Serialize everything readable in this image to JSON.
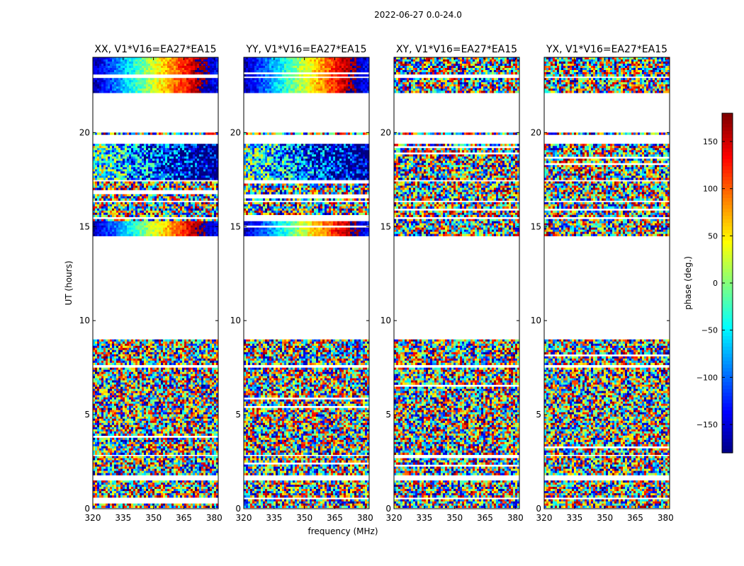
{
  "figure": {
    "suptitle": "2022-06-27 0.0-24.0"
  },
  "chart_data": {
    "type": "heatmap",
    "subtitle": "2022-06-27 0.0-24.0",
    "xlabel": "frequency (MHz)",
    "ylabel": "UT (hours)",
    "xlim": [
      320,
      382
    ],
    "ylim": [
      0,
      24
    ],
    "xticks": [
      320,
      335,
      350,
      365,
      380
    ],
    "yticks": [
      0,
      5,
      10,
      15,
      20
    ],
    "colorbar": {
      "label": "phase (deg.)",
      "range": [
        -180,
        180
      ],
      "ticks": [
        -150,
        -100,
        -50,
        0,
        50,
        100,
        150
      ],
      "colormap": "jet",
      "colors": [
        "#00007f",
        "#0000ff",
        "#007fff",
        "#00ffff",
        "#7fff7f",
        "#ffff00",
        "#ff7f00",
        "#ff0000",
        "#7f0000"
      ]
    },
    "panels": [
      {
        "title": "XX, V1*V16=EA27*EA15",
        "coherent_phase": true
      },
      {
        "title": "YY, V1*V16=EA27*EA15",
        "coherent_phase": true
      },
      {
        "title": "XY, V1*V16=EA27*EA15",
        "coherent_phase": false
      },
      {
        "title": "YX, V1*V16=EA27*EA15",
        "coherent_phase": false
      }
    ],
    "data_intervals_ut_hours": [
      [
        0.1,
        0.5
      ],
      [
        0.7,
        1.5
      ],
      [
        1.8,
        2.8
      ],
      [
        2.9,
        4.9
      ],
      [
        5.0,
        7.5
      ],
      [
        7.7,
        9.0
      ],
      [
        14.5,
        15.4
      ],
      [
        15.6,
        16.3
      ],
      [
        16.4,
        17.4
      ],
      [
        17.5,
        19.4
      ],
      [
        19.9,
        20.0
      ],
      [
        22.2,
        22.9
      ],
      [
        23.0,
        24.0
      ]
    ]
  }
}
